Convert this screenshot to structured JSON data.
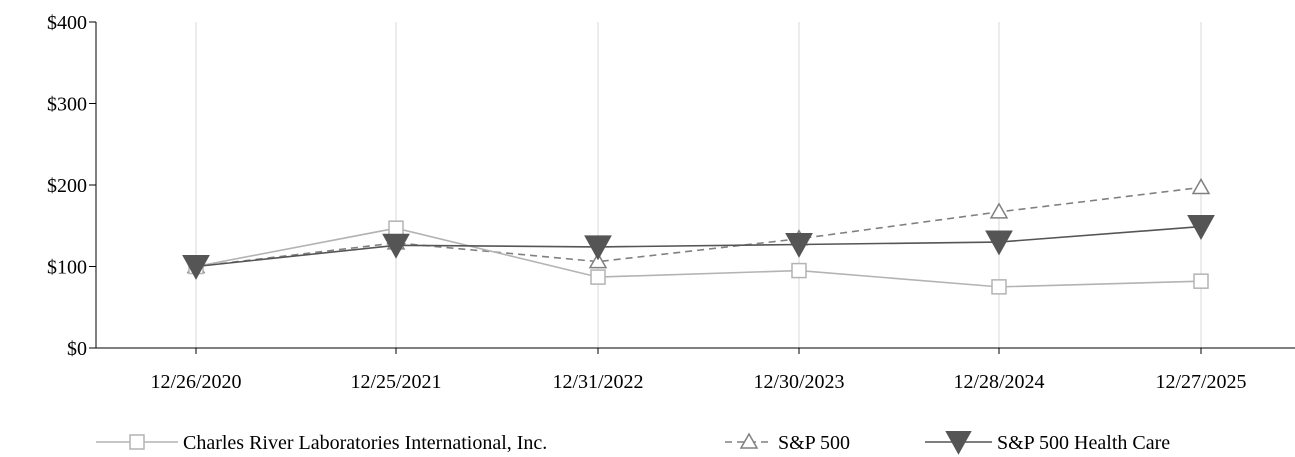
{
  "chart_data": {
    "type": "line",
    "title": "",
    "xlabel": "",
    "ylabel": "",
    "categories": [
      "12/26/2020",
      "12/25/2021",
      "12/31/2022",
      "12/30/2023",
      "12/28/2024",
      "12/27/2025"
    ],
    "ylim": [
      0,
      400
    ],
    "y_ticks": [
      0,
      100,
      200,
      300,
      400
    ],
    "y_tick_labels": [
      "$0",
      "$100",
      "$200",
      "$300",
      "$400"
    ],
    "grid": "vertical",
    "legend_position": "bottom",
    "series": [
      {
        "name": "Charles River Laboratories International, Inc.",
        "values": [
          100,
          147,
          87,
          95,
          75,
          82
        ],
        "color": "#b3b3b3",
        "marker": "square-open",
        "line_style": "solid"
      },
      {
        "name": "S&P 500",
        "values": [
          100,
          129,
          106,
          134,
          167,
          197
        ],
        "color": "#808080",
        "marker": "triangle-up-open",
        "line_style": "dashed"
      },
      {
        "name": "S&P 500 Health Care",
        "values": [
          100,
          126,
          124,
          127,
          130,
          149
        ],
        "color": "#555555",
        "marker": "triangle-down-filled",
        "line_style": "solid"
      }
    ]
  }
}
